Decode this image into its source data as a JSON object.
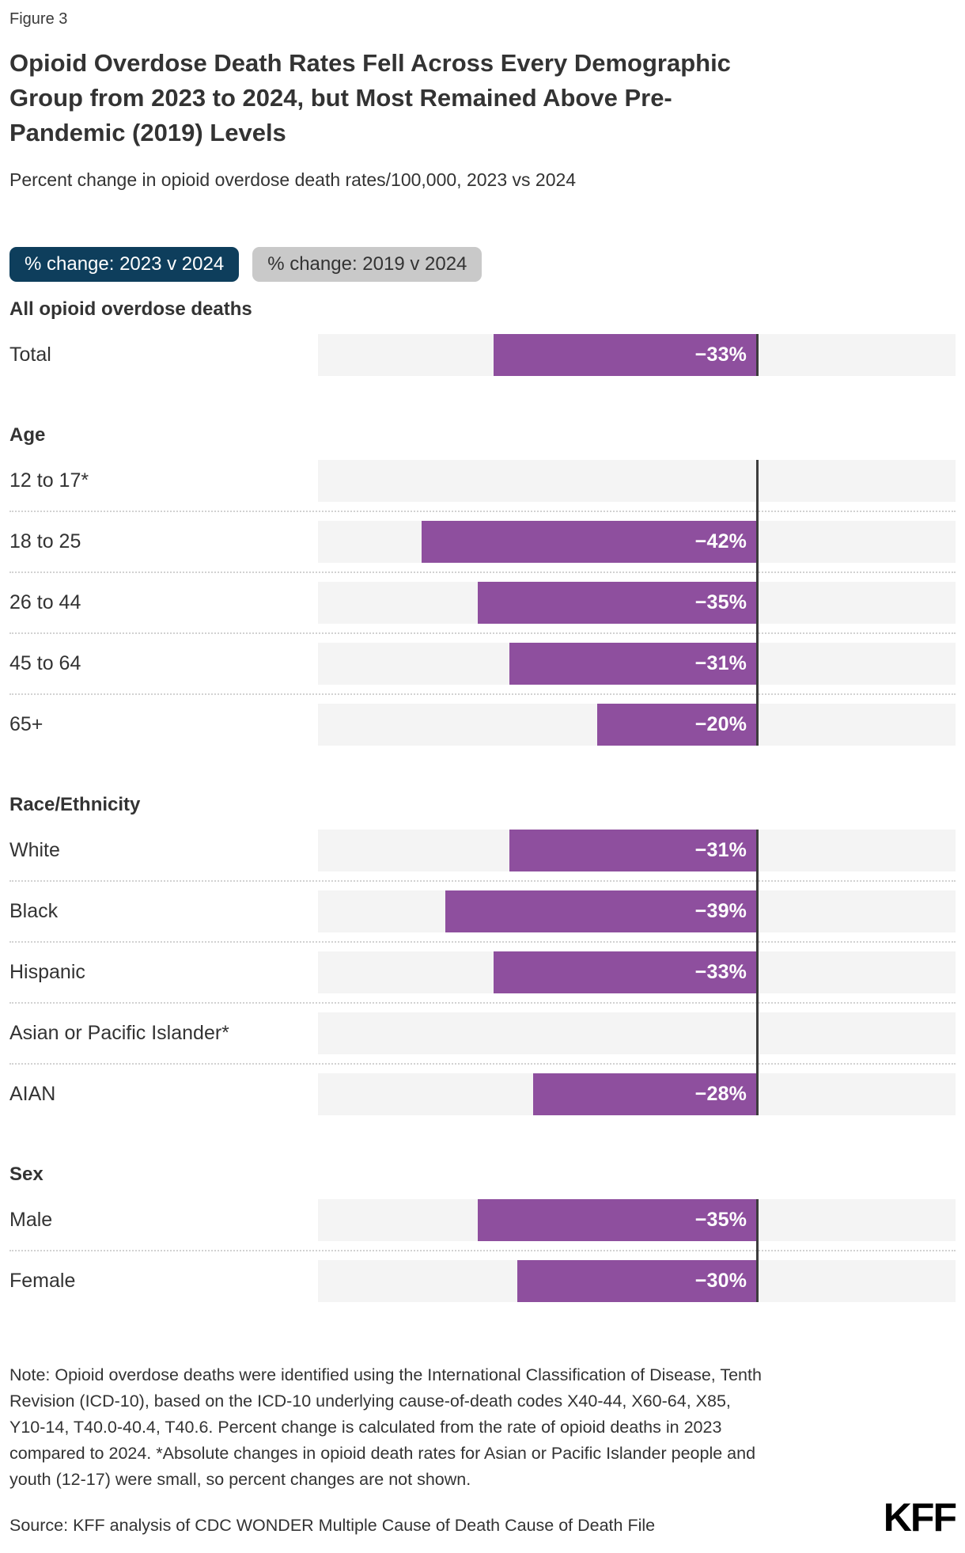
{
  "figure_label": "Figure 3",
  "title_lines": [
    "Opioid Overdose Death Rates Fell Across Every Demographic",
    "Group from 2023 to 2024, but Most Remained Above Pre-",
    "Pandemic (2019) Levels"
  ],
  "subtitle": "Percent change in opioid overdose death rates/100,000, 2023 vs 2024",
  "toggles": [
    {
      "label": "% change: 2023 v 2024",
      "active": true
    },
    {
      "label": "% change: 2019 v 2024",
      "active": false
    }
  ],
  "chart_data": {
    "type": "bar",
    "orientation": "horizontal",
    "unit": "percent",
    "title": "Percent change in opioid overdose death rates/100,000, 2023 vs 2024",
    "axis": {
      "min": -55,
      "max": 25,
      "zero_line": true,
      "ticks_shown": false
    },
    "legend_position": "top-buttons",
    "grid": false,
    "sections": [
      {
        "header": "All opioid overdose deaths",
        "rows": [
          {
            "label": "Total",
            "value": -33,
            "display": "−33%"
          }
        ]
      },
      {
        "header": "Age",
        "rows": [
          {
            "label": "12 to 17*",
            "value": null,
            "display": ""
          },
          {
            "label": "18 to 25",
            "value": -42,
            "display": "−42%"
          },
          {
            "label": "26 to 44",
            "value": -35,
            "display": "−35%"
          },
          {
            "label": "45 to 64",
            "value": -31,
            "display": "−31%"
          },
          {
            "label": "65+",
            "value": -20,
            "display": "−20%"
          }
        ]
      },
      {
        "header": "Race/Ethnicity",
        "rows": [
          {
            "label": "White",
            "value": -31,
            "display": "−31%"
          },
          {
            "label": "Black",
            "value": -39,
            "display": "−39%"
          },
          {
            "label": "Hispanic",
            "value": -33,
            "display": "−33%"
          },
          {
            "label": "Asian or Pacific Islander*",
            "value": null,
            "display": ""
          },
          {
            "label": "AIAN",
            "value": -28,
            "display": "−28%"
          }
        ]
      },
      {
        "header": "Sex",
        "rows": [
          {
            "label": "Male",
            "value": -35,
            "display": "−35%"
          },
          {
            "label": "Female",
            "value": -30,
            "display": "−30%"
          }
        ]
      }
    ],
    "colors": {
      "bar": "#8e4f9e",
      "track": "#f4f4f4",
      "zero_line": "#3d3d3d",
      "toggle_active_bg": "#0e3e5c",
      "toggle_active_text": "#ffffff",
      "toggle_inactive_bg": "#c9c9c9",
      "toggle_inactive_text": "#333333"
    }
  },
  "note": "Note: Opioid overdose deaths were identified using the International Classification of Disease, Tenth Revision (ICD-10), based on the ICD-10 underlying cause-of-death codes X40-44, X60-64, X85, Y10-14, T40.0-40.4, T40.6. Percent change is calculated from the rate of opioid deaths in 2023 compared to 2024. *Absolute changes in opioid death rates for Asian or Pacific Islander people and youth (12-17) were small, so percent changes are not shown.",
  "source": "Source: KFF analysis of CDC WONDER Multiple Cause of Death Cause of Death File",
  "logo": "KFF"
}
